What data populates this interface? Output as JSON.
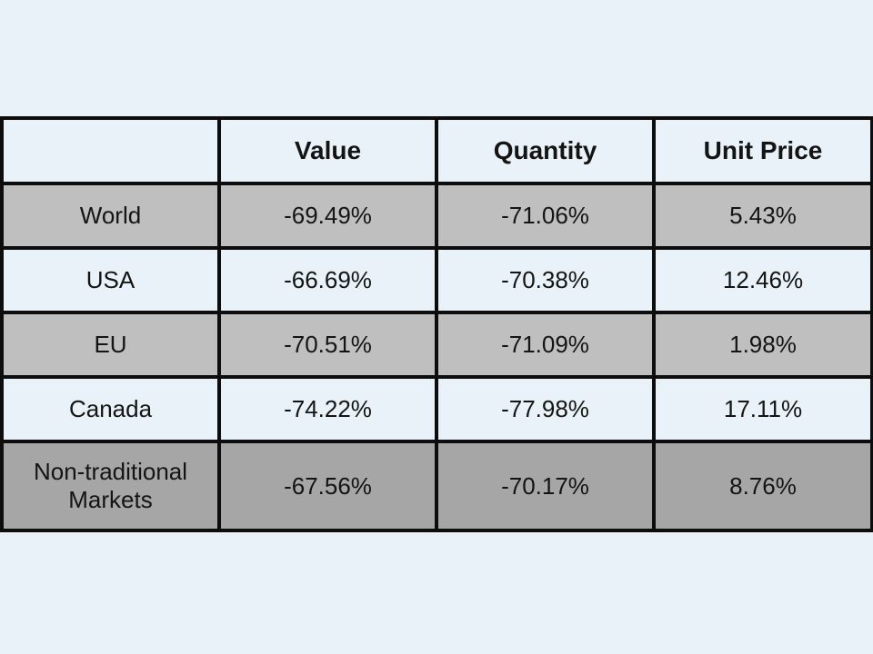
{
  "slide": {
    "background_color": "#e9f2f8"
  },
  "table": {
    "headers": [
      "",
      "Value",
      "Quantity",
      "Unit Price"
    ],
    "rows": [
      {
        "cells": [
          "World",
          "-69.49%",
          "-71.06%",
          "5.43%"
        ],
        "shade": "gray"
      },
      {
        "cells": [
          "USA",
          "-66.69%",
          "-70.38%",
          "12.46%"
        ],
        "shade": "light"
      },
      {
        "cells": [
          "EU",
          "-70.51%",
          "-71.09%",
          "1.98%"
        ],
        "shade": "gray"
      },
      {
        "cells": [
          "Canada",
          "-74.22%",
          "-77.98%",
          "17.11%"
        ],
        "shade": "light"
      },
      {
        "cells": [
          "Non-traditional Markets",
          "-67.56%",
          "-70.17%",
          "8.76%"
        ],
        "shade": "dark-gray"
      }
    ],
    "colors": {
      "header_bg": "#e9f2f8",
      "row_light_bg": "#e9f2f8",
      "row_gray_bg": "#bfbfbf",
      "row_dark_gray_bg": "#a6a6a6",
      "border": "#0d0d0d",
      "text": "#141414"
    }
  },
  "chart_data": {
    "type": "table",
    "columns": [
      "",
      "Value",
      "Quantity",
      "Unit Price"
    ],
    "rows": [
      [
        "World",
        "-69.49%",
        "-71.06%",
        "5.43%"
      ],
      [
        "USA",
        "-66.69%",
        "-70.38%",
        "12.46%"
      ],
      [
        "EU",
        "-70.51%",
        "-71.09%",
        "1.98%"
      ],
      [
        "Canada",
        "-74.22%",
        "-77.98%",
        "17.11%"
      ],
      [
        "Non-traditional Markets",
        "-67.56%",
        "-70.17%",
        "8.76%"
      ]
    ]
  }
}
